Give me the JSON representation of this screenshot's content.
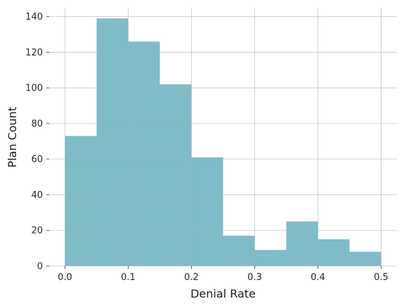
{
  "chart_data": {
    "type": "bar",
    "subtype": "histogram",
    "title": "",
    "xlabel": "Denial Rate",
    "ylabel": "Plan Count",
    "bin_edges": [
      0.0,
      0.05,
      0.1,
      0.15,
      0.2,
      0.25,
      0.3,
      0.35,
      0.4,
      0.45,
      0.5
    ],
    "values": [
      73,
      139,
      126,
      102,
      61,
      17,
      9,
      25,
      15,
      8
    ],
    "xlim": [
      -0.025,
      0.525
    ],
    "ylim": [
      0,
      145
    ],
    "xticks": [
      0.0,
      0.1,
      0.2,
      0.3,
      0.4,
      0.5
    ],
    "xtick_labels": [
      "0.0",
      "0.1",
      "0.2",
      "0.3",
      "0.4",
      "0.5"
    ],
    "yticks": [
      0,
      20,
      40,
      60,
      80,
      100,
      120,
      140
    ],
    "ytick_labels": [
      "0",
      "20",
      "40",
      "60",
      "80",
      "100",
      "120",
      "140"
    ],
    "grid": true,
    "bar_color": "#7fbbc9",
    "grid_color": "#b0b0b0"
  }
}
